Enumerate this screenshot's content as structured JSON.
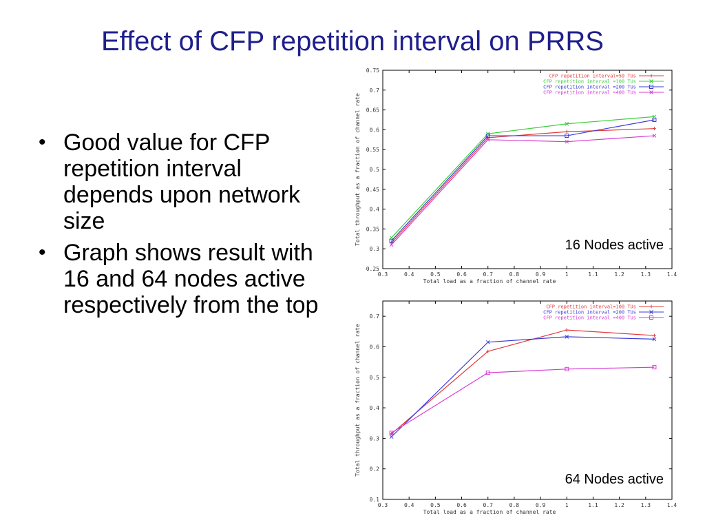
{
  "slide": {
    "title": "Effect of CFP repetition interval on PRRS",
    "bullets": [
      "Good value for CFP repetition interval depends upon network size",
      "Graph shows result with 16 and 64 nodes active respectively from the top"
    ]
  },
  "chart_data": [
    {
      "type": "line",
      "title": "",
      "annotation": "16 Nodes active",
      "xlabel": "Total load as a fraction of channel rate",
      "ylabel": "Total throughput as a fraction of channel rate",
      "xlim": [
        0.3,
        1.4
      ],
      "ylim": [
        0.25,
        0.75
      ],
      "xticks": [
        0.3,
        0.4,
        0.5,
        0.6,
        0.7,
        0.8,
        0.9,
        1,
        1.1,
        1.2,
        1.3,
        1.4
      ],
      "yticks": [
        0.25,
        0.3,
        0.35,
        0.4,
        0.45,
        0.5,
        0.55,
        0.6,
        0.65,
        0.7,
        0.75
      ],
      "legend": "top-right",
      "grid": false,
      "x": [
        0.333,
        0.7,
        1.0,
        1.333
      ],
      "series": [
        {
          "name": "CFP repetition interval=50 TUs",
          "color": "#e03c3c",
          "marker": "plus",
          "values": [
            0.315,
            0.58,
            0.595,
            0.603
          ]
        },
        {
          "name": "CFP repetition interval =100 TUs",
          "color": "#3ccf3c",
          "marker": "x",
          "values": [
            0.328,
            0.59,
            0.615,
            0.633
          ]
        },
        {
          "name": "CFP repetition interval =200 TUs",
          "color": "#3c3cd6",
          "marker": "square",
          "values": [
            0.32,
            0.585,
            0.585,
            0.625
          ]
        },
        {
          "name": "CFP repetition interval =400 TUs",
          "color": "#d63cd6",
          "marker": "x",
          "values": [
            0.31,
            0.575,
            0.57,
            0.585
          ]
        }
      ]
    },
    {
      "type": "line",
      "title": "",
      "annotation": "64 Nodes active",
      "xlabel": "Total load as a fraction of channel rate",
      "ylabel": "Total throughput as a fraction of channel rate",
      "xlim": [
        0.3,
        1.4
      ],
      "ylim": [
        0.1,
        0.75
      ],
      "xticks": [
        0.3,
        0.4,
        0.5,
        0.6,
        0.7,
        0.8,
        0.9,
        1,
        1.1,
        1.2,
        1.3,
        1.4
      ],
      "yticks": [
        0.1,
        0.2,
        0.3,
        0.4,
        0.5,
        0.6,
        0.7
      ],
      "legend": "top-right",
      "grid": false,
      "x": [
        0.333,
        0.7,
        1.0,
        1.333
      ],
      "series": [
        {
          "name": "CFP repetition interval=100 TUs",
          "color": "#e03c3c",
          "marker": "plus",
          "values": [
            0.315,
            0.585,
            0.655,
            0.637
          ]
        },
        {
          "name": "CFP repetition interval =200 TUs",
          "color": "#3c3cd6",
          "marker": "x",
          "values": [
            0.305,
            0.615,
            0.633,
            0.625
          ]
        },
        {
          "name": "CFP repetition interval =400 TUs",
          "color": "#d63cd6",
          "marker": "square",
          "values": [
            0.318,
            0.515,
            0.527,
            0.533
          ]
        }
      ]
    }
  ]
}
